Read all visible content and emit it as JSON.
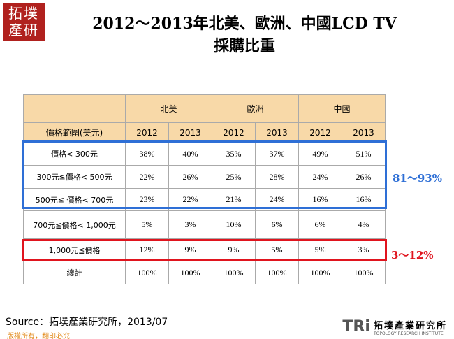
{
  "header": {
    "logo": "拓墣產研",
    "title_lines": [
      "2012～2013年北美、歐洲、中國LCD TV",
      "採購比重"
    ]
  },
  "table": {
    "regions": [
      "北美",
      "歐洲",
      "中國"
    ],
    "range_header": "價格範圍(美元)",
    "years": [
      "2012",
      "2013",
      "2012",
      "2013",
      "2012",
      "2013"
    ],
    "rows": [
      {
        "label": "價格< 300元",
        "cells": [
          "38%",
          "40%",
          "35%",
          "37%",
          "49%",
          "51%"
        ]
      },
      {
        "label": "300元≦價格< 500元",
        "cells": [
          "22%",
          "26%",
          "25%",
          "28%",
          "24%",
          "26%"
        ]
      },
      {
        "label": "500元≦ 價格< 700元",
        "cells": [
          "23%",
          "22%",
          "21%",
          "24%",
          "16%",
          "16%"
        ]
      },
      {
        "label": "700元≦價格< 1,000元",
        "cells": [
          "5%",
          "3%",
          "10%",
          "6%",
          "6%",
          "4%"
        ]
      },
      {
        "label": "1,000元≦價格",
        "cells": [
          "12%",
          "9%",
          "9%",
          "5%",
          "5%",
          "3%"
        ]
      },
      {
        "label": "總計",
        "cells": [
          "100%",
          "100%",
          "100%",
          "100%",
          "100%",
          "100%"
        ]
      }
    ]
  },
  "annotations": [
    "81～93%",
    "3～12%"
  ],
  "source": "Source：拓墣產業研究所，2013/07",
  "copyright": "版權所有，翻印必究",
  "brand": {
    "mark": "TRi",
    "name": "拓墣產業研究所",
    "english": "TOPOLOGY RESEARCH INSTITUTE"
  }
}
